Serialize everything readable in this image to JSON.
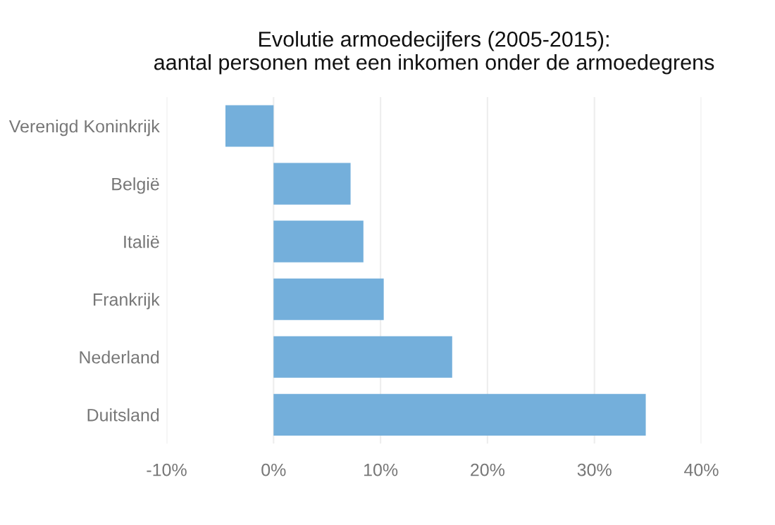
{
  "chart_data": {
    "type": "bar",
    "orientation": "horizontal",
    "title": "Evolutie armoedecijfers (2005-2015):\naantal personen met een inkomen onder de armoedegrens",
    "categories": [
      "Verenigd Koninkrijk",
      "België",
      "Italië",
      "Frankrijk",
      "Nederland",
      "Duitsland"
    ],
    "values": [
      -4.5,
      7.2,
      8.4,
      10.3,
      16.7,
      34.8
    ],
    "color": "#74afdb",
    "xlim": [
      -10,
      40
    ],
    "xticks": [
      {
        "value": -10,
        "label": "-10%"
      },
      {
        "value": 0,
        "label": "0%"
      },
      {
        "value": 10,
        "label": "10%"
      },
      {
        "value": 20,
        "label": "20%"
      },
      {
        "value": 30,
        "label": "30%"
      },
      {
        "value": 40,
        "label": "40%"
      }
    ],
    "grid": "x"
  }
}
